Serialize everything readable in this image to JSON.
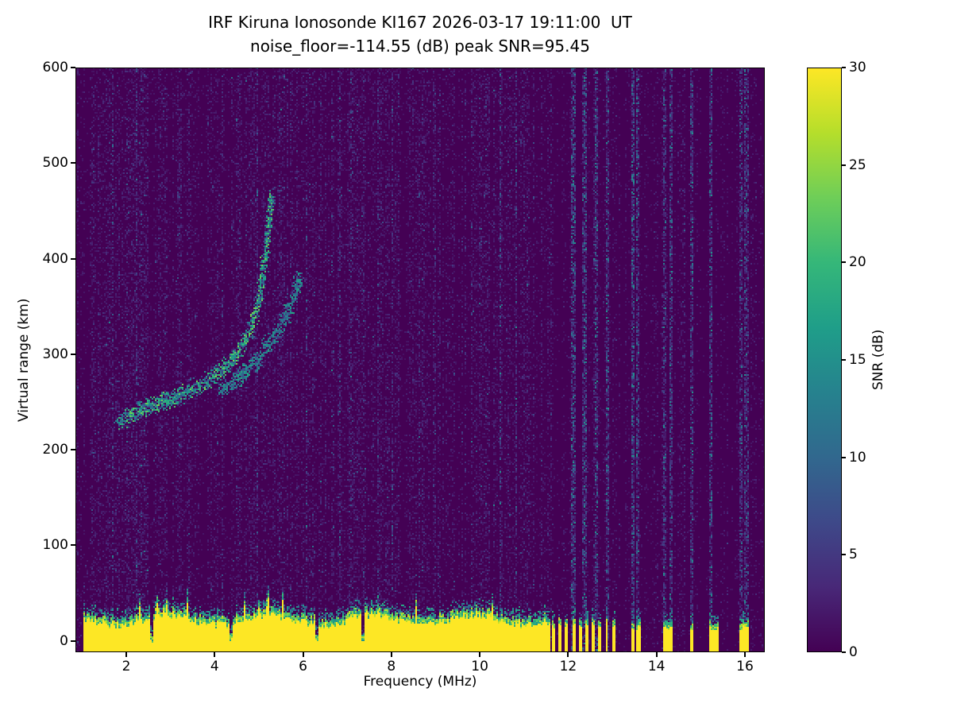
{
  "chart_data": {
    "type": "heatmap",
    "title": "IRF Kiruna Ionosonde KI167 2026-03-17 19:11:00  UT",
    "subtitle": "noise_floor=-114.55 (dB) peak SNR=95.45",
    "xlabel": "Frequency (MHz)",
    "ylabel": "Virtual range (km)",
    "xlim": [
      0.85,
      16.45
    ],
    "ylim": [
      -12,
      600
    ],
    "xticks": [
      2,
      4,
      6,
      8,
      10,
      12,
      14,
      16
    ],
    "yticks": [
      0,
      100,
      200,
      300,
      400,
      500,
      600
    ],
    "grid": false,
    "noise_floor_db": -114.55,
    "peak_snr_db": 95.45,
    "colorbar": {
      "label": "SNR (dB)",
      "min": 0,
      "max": 30,
      "ticks": [
        0,
        5,
        10,
        15,
        20,
        25,
        30
      ],
      "colormap": "viridis",
      "stops": [
        "#440154",
        "#482878",
        "#3e4989",
        "#31688e",
        "#26828e",
        "#1f9e89",
        "#35b779",
        "#6ece58",
        "#b5de2b",
        "#fde725"
      ]
    },
    "background_color": "#440154",
    "ground_echo": {
      "freq_start": 1.0,
      "freq_end": 11.58,
      "top_km": 30,
      "snr_db": 30,
      "notch_freqs": [
        2.55,
        4.35,
        6.3,
        7.35
      ],
      "comb": {
        "start": 11.62,
        "end": 13.05,
        "period": 0.15,
        "duty": 0.45
      },
      "sparse_bar_freqs": [
        13.45,
        13.57,
        14.18,
        14.3,
        14.78,
        15.22,
        15.34,
        15.9,
        16.02
      ]
    },
    "ionospheric_echo": {
      "o_trace": [
        [
          1.8,
          230
        ],
        [
          2.2,
          240
        ],
        [
          2.6,
          247
        ],
        [
          3.0,
          254
        ],
        [
          3.4,
          262
        ],
        [
          3.8,
          272
        ],
        [
          4.2,
          286
        ],
        [
          4.5,
          300
        ],
        [
          4.8,
          326
        ],
        [
          5.0,
          360
        ],
        [
          5.1,
          395
        ],
        [
          5.2,
          435
        ],
        [
          5.28,
          468
        ]
      ],
      "x_trace": [
        [
          4.1,
          262
        ],
        [
          4.4,
          272
        ],
        [
          4.7,
          284
        ],
        [
          5.0,
          298
        ],
        [
          5.3,
          316
        ],
        [
          5.6,
          340
        ],
        [
          5.8,
          362
        ],
        [
          5.9,
          382
        ]
      ],
      "snr_range_db": [
        6,
        24
      ]
    },
    "noisy_column_freqs": [
      12.1,
      12.35,
      12.62,
      12.88,
      13.45,
      13.57,
      14.18,
      14.3,
      14.78,
      15.22,
      15.9,
      16.02
    ]
  }
}
